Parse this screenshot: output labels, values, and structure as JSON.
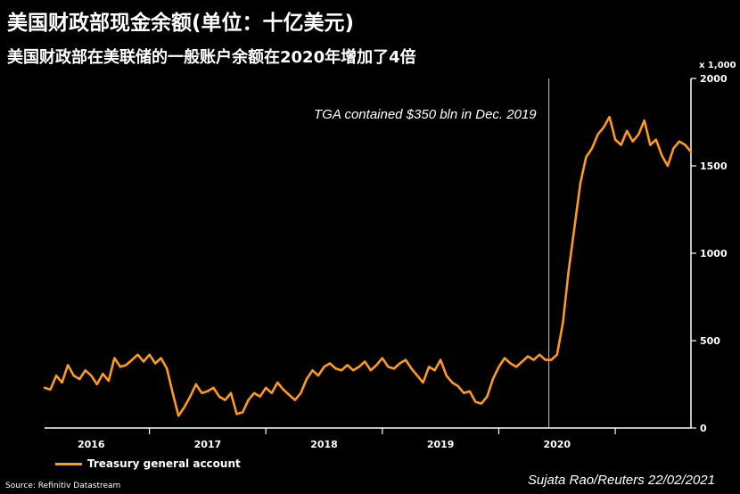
{
  "title": "美国财政部现金余额(单位：十亿美元)",
  "subtitle": "美国财政部在美联储的一般账户余额在2020年增加了4倍",
  "source": "Source: Refinitiv Datastream",
  "credit": "Sujata Rao/Reuters 22/02/2021",
  "legend_label": "Treasury general account",
  "line_color": "#ff9a1a",
  "chart_data": {
    "type": "line",
    "title": "美国财政部现金余额(单位：十亿美元)",
    "subtitle": "美国财政部在美联储的一般账户余额在2020年增加了4倍",
    "xlabel": "",
    "ylabel": "x 1,000",
    "ylim": [
      0,
      2000
    ],
    "yticks": [
      0,
      500,
      1000,
      1500,
      2000
    ],
    "ytick_labels": [
      "0",
      "500",
      "1000",
      "1500",
      "2000"
    ],
    "xlim": [
      2015.6,
      2021.15
    ],
    "xticks": [
      2016,
      2017,
      2018,
      2019,
      2020
    ],
    "xtick_labels": [
      "2016",
      "2017",
      "2018",
      "2019",
      "2020"
    ],
    "annotation": {
      "text": "TGA contained $350 bln in Dec. 2019",
      "x": 2019.93
    },
    "series": [
      {
        "name": "Treasury general account",
        "x": [
          2015.6,
          2015.65,
          2015.7,
          2015.75,
          2015.8,
          2015.85,
          2015.9,
          2015.95,
          2016.0,
          2016.05,
          2016.1,
          2016.15,
          2016.2,
          2016.25,
          2016.3,
          2016.35,
          2016.4,
          2016.45,
          2016.5,
          2016.55,
          2016.6,
          2016.65,
          2016.7,
          2016.75,
          2016.8,
          2016.85,
          2016.9,
          2016.95,
          2017.0,
          2017.05,
          2017.1,
          2017.15,
          2017.2,
          2017.25,
          2017.3,
          2017.35,
          2017.4,
          2017.45,
          2017.5,
          2017.55,
          2017.6,
          2017.65,
          2017.7,
          2017.75,
          2017.8,
          2017.85,
          2017.9,
          2017.95,
          2018.0,
          2018.05,
          2018.1,
          2018.15,
          2018.2,
          2018.25,
          2018.3,
          2018.35,
          2018.4,
          2018.45,
          2018.5,
          2018.55,
          2018.6,
          2018.65,
          2018.7,
          2018.75,
          2018.8,
          2018.85,
          2018.9,
          2018.95,
          2019.0,
          2019.05,
          2019.1,
          2019.15,
          2019.2,
          2019.25,
          2019.3,
          2019.35,
          2019.4,
          2019.45,
          2019.5,
          2019.55,
          2019.6,
          2019.65,
          2019.7,
          2019.75,
          2019.8,
          2019.85,
          2019.9,
          2019.95,
          2020.0,
          2020.05,
          2020.1,
          2020.15,
          2020.2,
          2020.25,
          2020.3,
          2020.35,
          2020.4,
          2020.45,
          2020.5,
          2020.55,
          2020.6,
          2020.65,
          2020.7,
          2020.75,
          2020.8,
          2020.85,
          2020.9,
          2020.95,
          2021.0,
          2021.05,
          2021.1,
          2021.15
        ],
        "values": [
          230,
          220,
          300,
          260,
          360,
          300,
          280,
          330,
          300,
          250,
          310,
          270,
          400,
          350,
          360,
          390,
          420,
          380,
          420,
          370,
          400,
          340,
          200,
          70,
          120,
          180,
          250,
          200,
          210,
          230,
          180,
          160,
          200,
          80,
          90,
          160,
          200,
          180,
          230,
          200,
          260,
          220,
          190,
          160,
          200,
          280,
          330,
          300,
          350,
          370,
          340,
          330,
          360,
          330,
          350,
          380,
          330,
          360,
          400,
          350,
          340,
          370,
          390,
          340,
          300,
          260,
          350,
          330,
          390,
          300,
          260,
          240,
          200,
          210,
          150,
          140,
          180,
          280,
          350,
          400,
          370,
          350,
          380,
          410,
          390,
          420,
          390,
          390,
          420,
          600,
          900,
          1150,
          1400,
          1550,
          1600,
          1680,
          1720,
          1780,
          1650,
          1620,
          1700,
          1640,
          1680,
          1760,
          1620,
          1650,
          1560,
          1500,
          1600,
          1640,
          1620,
          1580
        ]
      }
    ]
  }
}
